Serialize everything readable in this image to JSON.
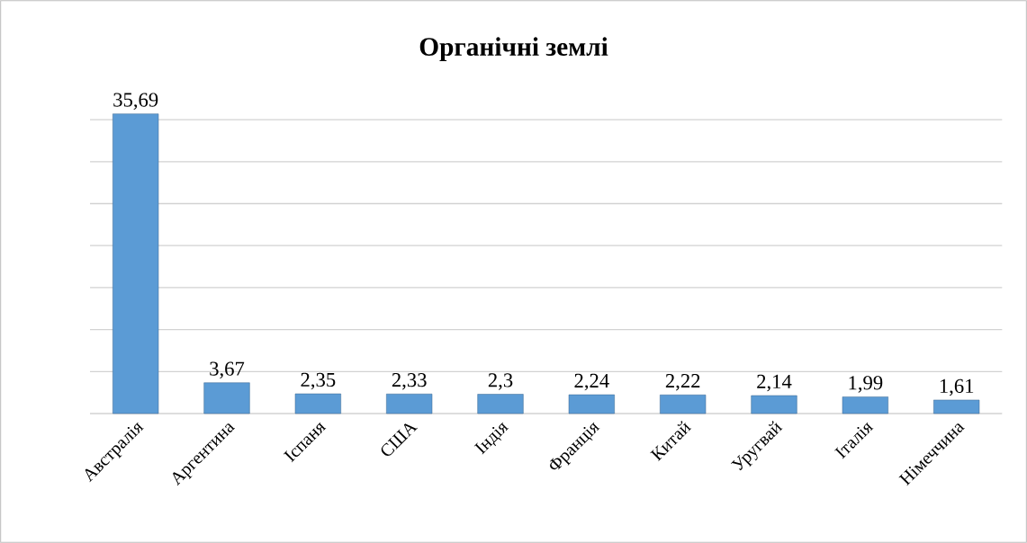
{
  "chart_data": {
    "type": "bar",
    "title": "Органічні землі",
    "categories": [
      "Австралія",
      "Аргентина",
      "Іспаня",
      "США",
      "Індія",
      "Франція",
      "Китай",
      "Уругвай",
      "Італія",
      "Німеччина"
    ],
    "values": [
      35.69,
      3.67,
      2.35,
      2.33,
      2.3,
      2.24,
      2.22,
      2.14,
      1.99,
      1.61
    ],
    "value_labels": [
      "35,69",
      "3,67",
      "2,35",
      "2,33",
      "2,3",
      "2,24",
      "2,22",
      "2,14",
      "1,99",
      "1,61"
    ],
    "color": "#5b9bd5",
    "grid": "y",
    "tick_labels": "x"
  }
}
